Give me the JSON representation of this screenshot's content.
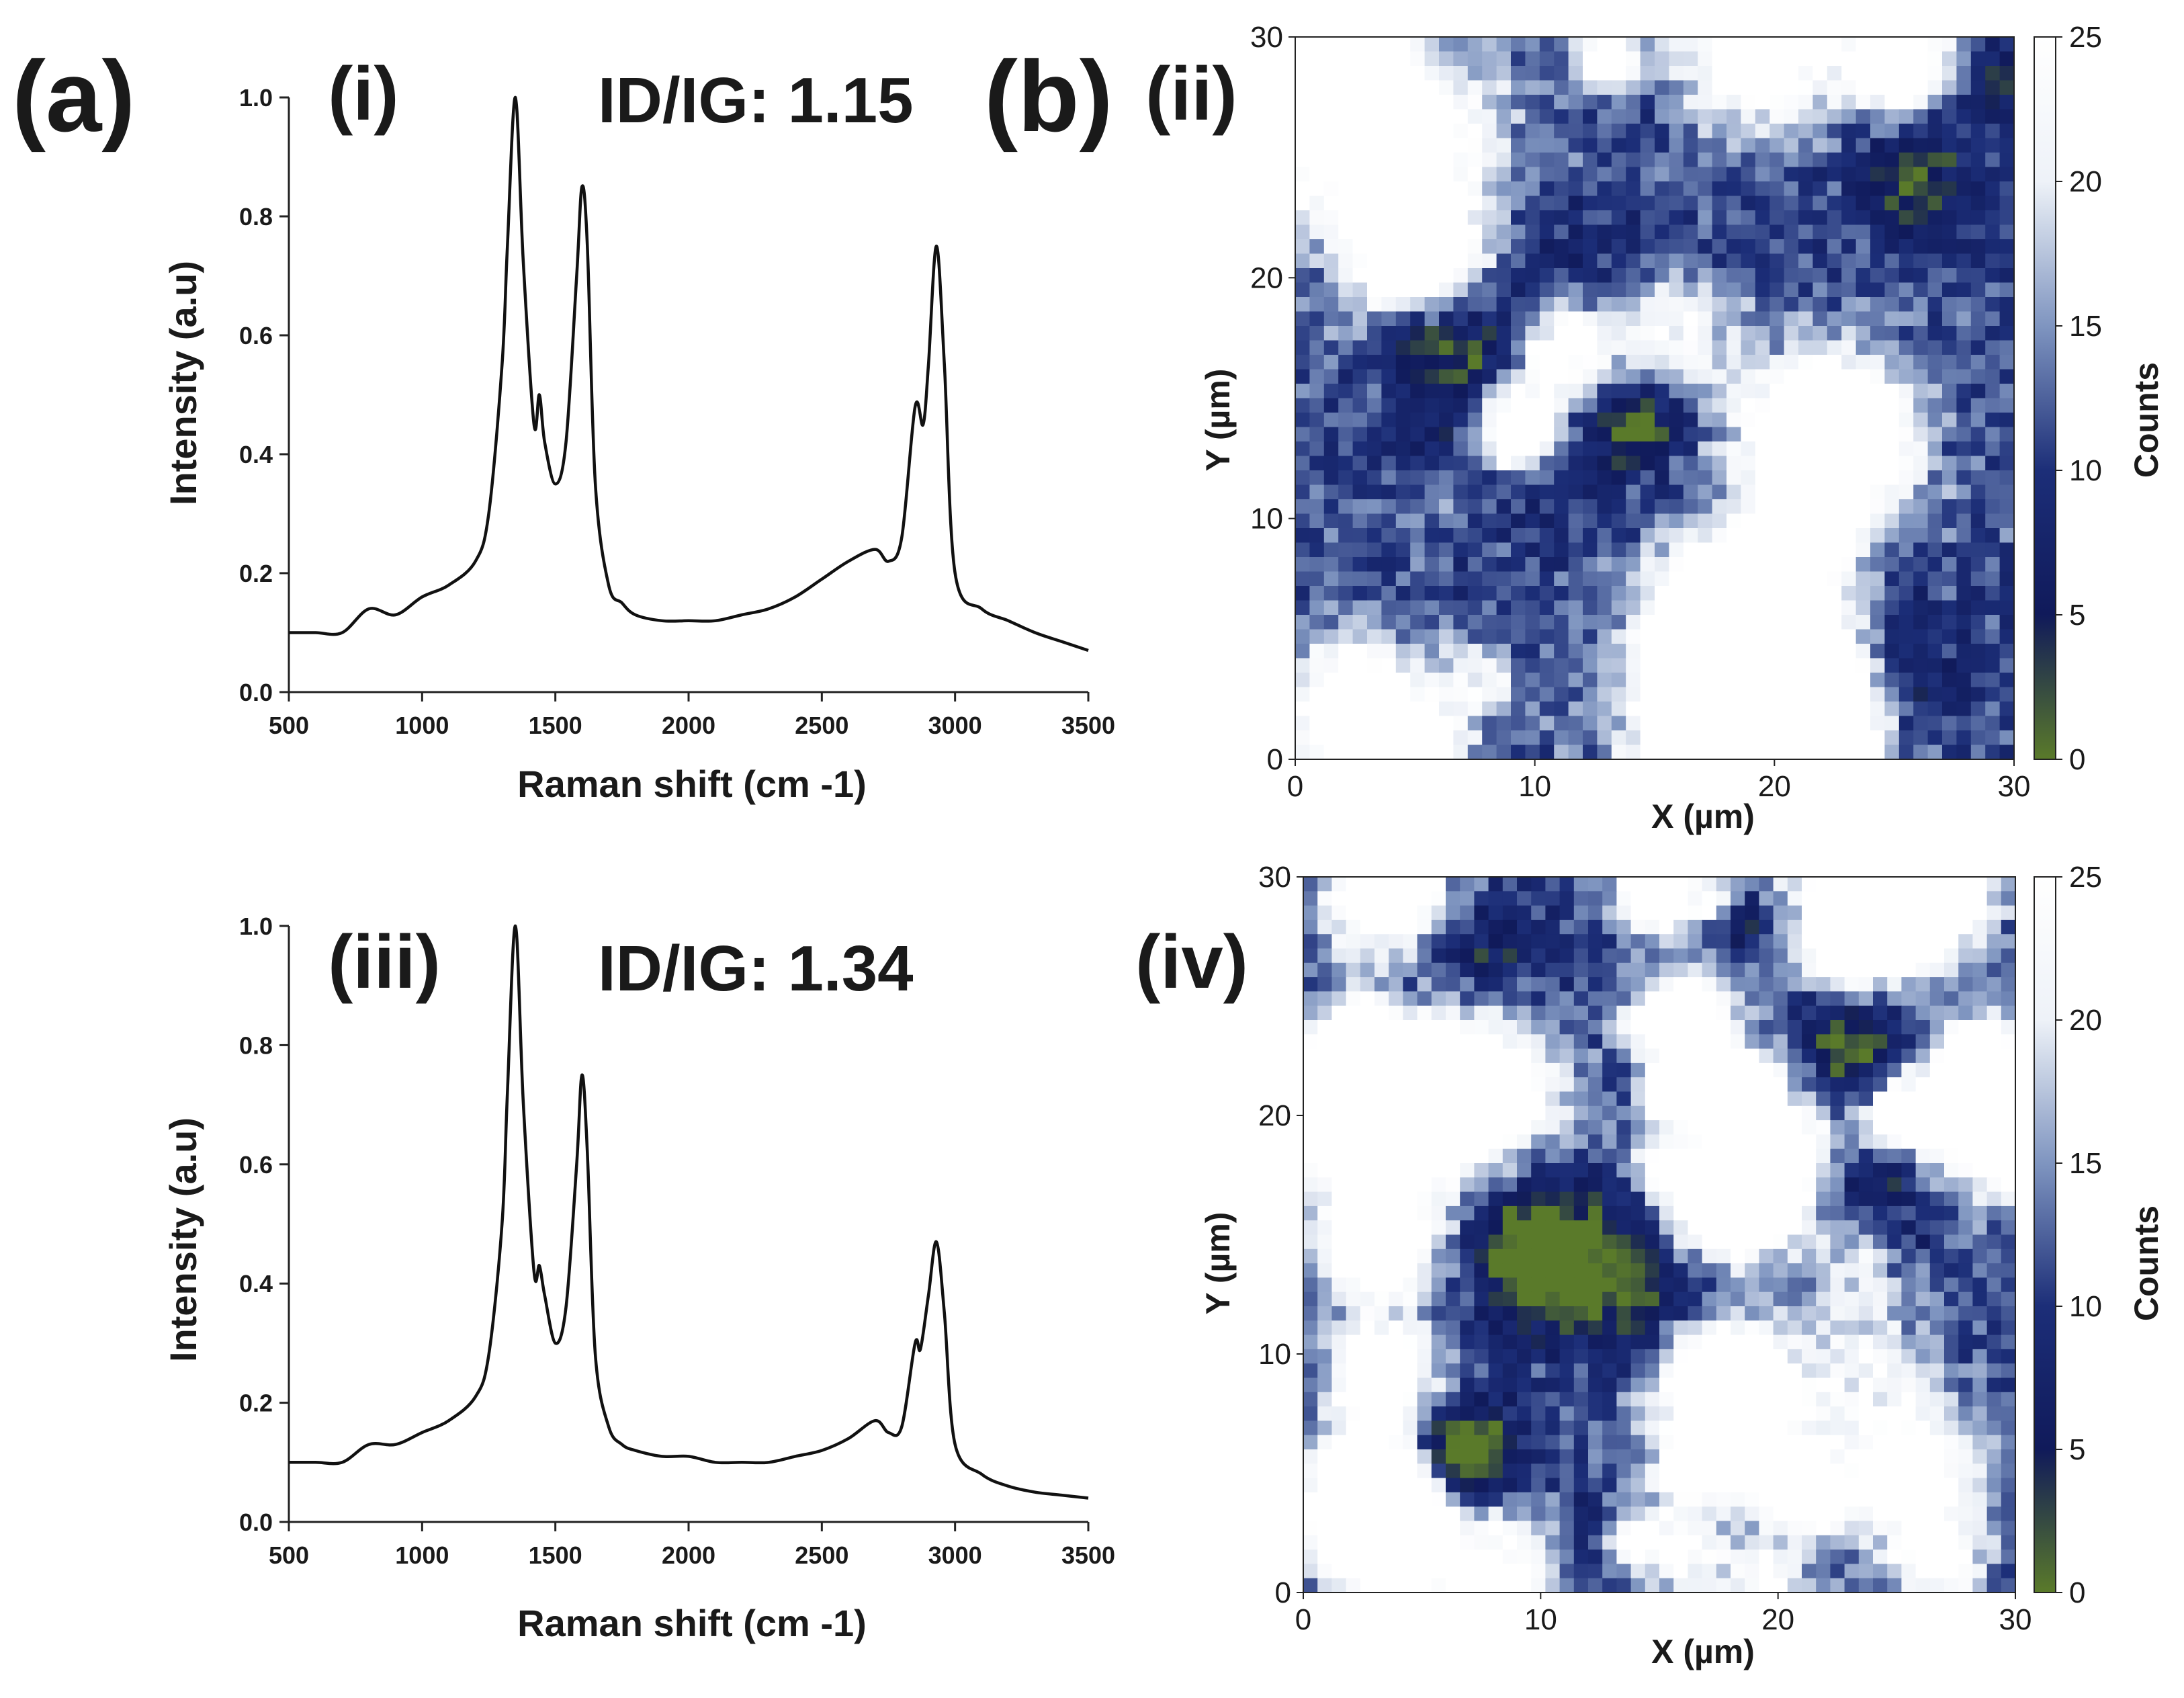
{
  "figure": {
    "panel_labels": {
      "a": "(a)",
      "b": "(b)"
    }
  },
  "chart_data": [
    {
      "type": "line",
      "panel": "(i)",
      "annotation": "ID/IG: 1.15",
      "xlabel": "Raman shift (cm -1)",
      "ylabel": "Intensity (a.u)",
      "xlim": [
        500,
        3500
      ],
      "ylim": [
        0.0,
        1.0
      ],
      "xticks": [
        "500",
        "1000",
        "1500",
        "2000",
        "2500",
        "3000",
        "3500"
      ],
      "yticks": [
        "0.0",
        "0.2",
        "0.4",
        "0.6",
        "0.8",
        "1.0"
      ],
      "x": [
        500,
        600,
        700,
        800,
        900,
        1000,
        1100,
        1200,
        1250,
        1300,
        1320,
        1350,
        1380,
        1420,
        1440,
        1460,
        1500,
        1540,
        1580,
        1600,
        1620,
        1650,
        1700,
        1750,
        1800,
        1900,
        2000,
        2100,
        2200,
        2300,
        2400,
        2500,
        2600,
        2700,
        2750,
        2800,
        2850,
        2880,
        2900,
        2930,
        2960,
        3000,
        3100,
        3200,
        3300,
        3400,
        3500
      ],
      "y": [
        0.1,
        0.1,
        0.1,
        0.14,
        0.13,
        0.16,
        0.18,
        0.22,
        0.3,
        0.55,
        0.75,
        1.0,
        0.72,
        0.45,
        0.5,
        0.42,
        0.35,
        0.42,
        0.7,
        0.85,
        0.75,
        0.35,
        0.18,
        0.15,
        0.13,
        0.12,
        0.12,
        0.12,
        0.13,
        0.14,
        0.16,
        0.19,
        0.22,
        0.24,
        0.22,
        0.26,
        0.48,
        0.45,
        0.55,
        0.75,
        0.55,
        0.2,
        0.14,
        0.12,
        0.1,
        0.085,
        0.07
      ]
    },
    {
      "type": "line",
      "panel": "(iii)",
      "annotation": "ID/IG: 1.34",
      "xlabel": "Raman shift (cm -1)",
      "ylabel": "Intensity (a.u)",
      "xlim": [
        500,
        3500
      ],
      "ylim": [
        0.0,
        1.0
      ],
      "xticks": [
        "500",
        "1000",
        "1500",
        "2000",
        "2500",
        "3000",
        "3500"
      ],
      "yticks": [
        "0.0",
        "0.2",
        "0.4",
        "0.6",
        "0.8",
        "1.0"
      ],
      "x": [
        500,
        600,
        700,
        800,
        900,
        1000,
        1100,
        1200,
        1250,
        1300,
        1320,
        1350,
        1380,
        1420,
        1440,
        1460,
        1500,
        1540,
        1580,
        1600,
        1620,
        1650,
        1700,
        1750,
        1800,
        1900,
        2000,
        2100,
        2200,
        2300,
        2400,
        2500,
        2600,
        2700,
        2750,
        2800,
        2850,
        2870,
        2900,
        2930,
        2960,
        3000,
        3100,
        3200,
        3300,
        3400,
        3500
      ],
      "y": [
        0.1,
        0.1,
        0.1,
        0.13,
        0.13,
        0.15,
        0.17,
        0.21,
        0.28,
        0.5,
        0.72,
        1.0,
        0.7,
        0.42,
        0.43,
        0.38,
        0.3,
        0.36,
        0.6,
        0.75,
        0.62,
        0.28,
        0.16,
        0.13,
        0.12,
        0.11,
        0.11,
        0.1,
        0.1,
        0.1,
        0.11,
        0.12,
        0.14,
        0.17,
        0.15,
        0.16,
        0.3,
        0.29,
        0.38,
        0.47,
        0.35,
        0.13,
        0.08,
        0.06,
        0.05,
        0.045,
        0.04
      ]
    },
    {
      "type": "heatmap",
      "panel": "(ii)",
      "xlabel": "X (µm)",
      "ylabel": "Y (µm)",
      "colorbar_label": "Counts",
      "xlim": [
        0,
        30
      ],
      "ylim": [
        0,
        30
      ],
      "clim": [
        0,
        25
      ],
      "xticks": [
        "0",
        "10",
        "20",
        "30"
      ],
      "yticks": [
        "0",
        "10",
        "20",
        "30"
      ],
      "cticks": [
        "0",
        "5",
        "10",
        "15",
        "20",
        "25"
      ],
      "grid": 50,
      "seed": 7,
      "blob_count": 28,
      "colormap": [
        "#5a7a2a",
        "#101a5a",
        "#1c2e78",
        "#7f95c0",
        "#eef2f8",
        "#ffffff"
      ]
    },
    {
      "type": "heatmap",
      "panel": "(iv)",
      "xlabel": "X (µm)",
      "ylabel": "Y (µm)",
      "colorbar_label": "Counts",
      "xlim": [
        0,
        30
      ],
      "ylim": [
        0,
        30
      ],
      "clim": [
        0,
        25
      ],
      "xticks": [
        "0",
        "10",
        "20",
        "30"
      ],
      "yticks": [
        "0",
        "10",
        "20",
        "30"
      ],
      "cticks": [
        "0",
        "5",
        "10",
        "15",
        "20",
        "25"
      ],
      "grid": 50,
      "seed": 19,
      "blob_count": 55,
      "colormap": [
        "#5a7a2a",
        "#101a5a",
        "#1c2e78",
        "#7f95c0",
        "#eef2f8",
        "#ffffff"
      ]
    }
  ]
}
